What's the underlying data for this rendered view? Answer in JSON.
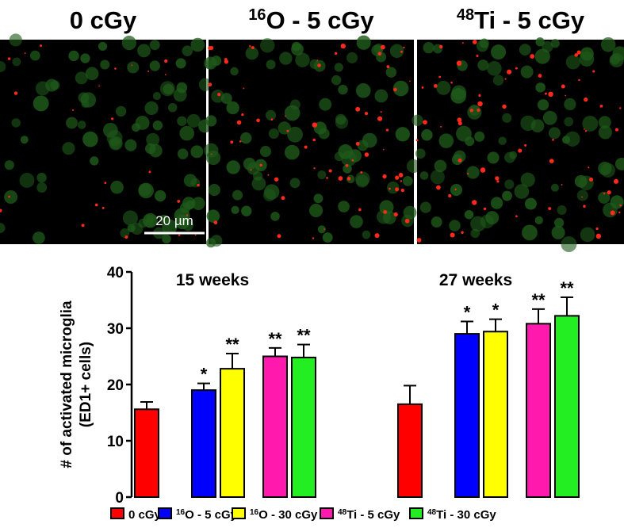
{
  "panels": [
    {
      "title": "0 cGy",
      "scale_bar": "20 µm"
    },
    {
      "title_sup": "16",
      "title": "O - 5 cGy"
    },
    {
      "title_sup": "48",
      "title": "Ti - 5 cGy"
    }
  ],
  "chart_data": {
    "type": "bar",
    "y_label": [
      "# of activated microglia",
      "(ED1+ cells)"
    ],
    "categories": [
      "15 weeks",
      "27 weeks"
    ],
    "ylim": [
      0,
      40
    ],
    "yticks": [
      0,
      10,
      20,
      30,
      40
    ],
    "series": [
      {
        "name": "0 cGy",
        "color": "#ff0000",
        "values": [
          15.6,
          16.5
        ],
        "errors": [
          1.3,
          3.3
        ],
        "value_labels": [
          null,
          null
        ]
      },
      {
        "name_sup": "16",
        "name": "O - 5 cGy",
        "color": "#0000ff",
        "values": [
          19.0,
          29.0
        ],
        "errors": [
          1.2,
          2.2
        ],
        "value_labels": [
          "*",
          "*"
        ]
      },
      {
        "name_sup": "16",
        "name": "O - 30 cGy",
        "color": "#ffff00",
        "values": [
          22.8,
          29.4
        ],
        "errors": [
          2.7,
          2.2
        ],
        "value_labels": [
          "**",
          "*"
        ]
      },
      {
        "name_sup": "48",
        "name": "Ti - 5 cGy",
        "color": "#ff1aad",
        "values": [
          25.0,
          30.8
        ],
        "errors": [
          1.5,
          2.6
        ],
        "value_labels": [
          "**",
          "**"
        ]
      },
      {
        "name_sup": "48",
        "name": "Ti - 30 cGy",
        "color": "#22ee22",
        "values": [
          24.8,
          32.2
        ],
        "errors": [
          2.3,
          3.3
        ],
        "value_labels": [
          "**",
          "**"
        ]
      }
    ]
  }
}
